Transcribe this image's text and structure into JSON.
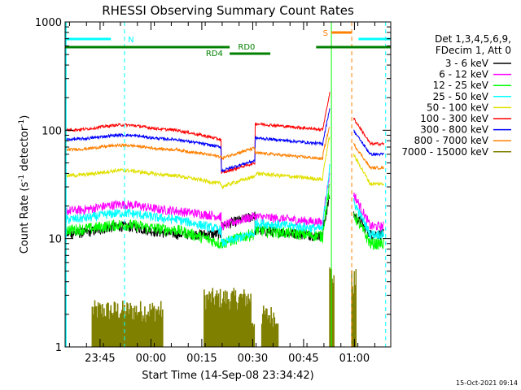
{
  "chart_data": {
    "type": "line",
    "title": "RHESSI Observing Summary Count Rates",
    "xlabel": "Start Time (14-Sep-08 23:34:42)",
    "ylabel_main": "Count Rate (s",
    "ylabel_sup1": "-1",
    "ylabel_mid": " detector",
    "ylabel_sup2": "-1",
    "ylabel_end": ")",
    "yscale": "log",
    "ylim": [
      1,
      1000
    ],
    "xlim_minutes": [
      0,
      96
    ],
    "y_ticks": [
      {
        "value": 1000,
        "label": "1000"
      },
      {
        "value": 100,
        "label": "100"
      },
      {
        "value": 10,
        "label": "10"
      },
      {
        "value": 1,
        "label": "1"
      }
    ],
    "x_ticks": [
      {
        "t": 10.3,
        "label": "23:45"
      },
      {
        "t": 25.3,
        "label": "00:00"
      },
      {
        "t": 40.3,
        "label": "00:15"
      },
      {
        "t": 55.3,
        "label": "00:30"
      },
      {
        "t": 70.3,
        "label": "00:45"
      },
      {
        "t": 85.3,
        "label": "01:00"
      }
    ],
    "legend_header": [
      "Det 1,3,4,5,6,9,",
      "FDecim 1, Att 0"
    ],
    "series": [
      {
        "name": "3 - 6 keV",
        "color": "#000000",
        "base": 11,
        "bump": 0.18,
        "pre_gap": 11,
        "gap": 13,
        "post_gap": 12,
        "pre_flare": 12,
        "flare_peak": 25,
        "decay_start": 17,
        "decay_end": 11,
        "noise": 0.22
      },
      {
        "name": "6 - 12 keV",
        "color": "#ff00ff",
        "base": 18,
        "bump": 0.15,
        "pre_gap": 16,
        "gap": 13,
        "post_gap": 16,
        "pre_flare": 16,
        "flare_peak": 40,
        "decay_start": 26,
        "decay_end": 13,
        "noise": 0.2
      },
      {
        "name": "12 - 25 keV",
        "color": "#00ff00",
        "base": 12,
        "bump": 0.12,
        "pre_gap": 9,
        "gap": 9,
        "post_gap": 12,
        "pre_flare": 12,
        "flare_peak": 30,
        "decay_start": 17,
        "decay_end": 9,
        "noise": 0.25
      },
      {
        "name": "25 - 50 keV",
        "color": "#00ffff",
        "base": 15,
        "bump": 0.15,
        "pre_gap": 12,
        "gap": 9,
        "post_gap": 14,
        "pre_flare": 14,
        "flare_peak": 45,
        "decay_start": 22,
        "decay_end": 11,
        "noise": 0.2
      },
      {
        "name": "50 - 100 keV",
        "color": "#e0e000",
        "base": 38,
        "bump": 0.12,
        "pre_gap": 32,
        "gap": 30,
        "post_gap": 40,
        "pre_flare": 40,
        "flare_peak": 90,
        "decay_start": 60,
        "decay_end": 32,
        "noise": 0.08
      },
      {
        "name": "100 - 300 keV",
        "color": "#ff0000",
        "base": 100,
        "bump": 0.12,
        "pre_gap": 82,
        "gap": 40,
        "post_gap": 115,
        "pre_flare": 105,
        "flare_peak": 220,
        "decay_start": 130,
        "decay_end": 75,
        "noise": 0.06
      },
      {
        "name": "300 - 800 keV",
        "color": "#0000ff",
        "base": 82,
        "bump": 0.1,
        "pre_gap": 70,
        "gap": 42,
        "post_gap": 85,
        "pre_flare": 78,
        "flare_peak": 160,
        "decay_start": 100,
        "decay_end": 60,
        "noise": 0.06
      },
      {
        "name": "800 - 7000 keV",
        "color": "#ff8000",
        "base": 66,
        "bump": 0.1,
        "pre_gap": 57,
        "gap": 55,
        "post_gap": 62,
        "pre_flare": 60,
        "flare_peak": 110,
        "decay_start": 75,
        "decay_end": 45,
        "noise": 0.06
      },
      {
        "name": "7000 - 15000 keV",
        "color": "#808000",
        "base": 1,
        "bump": 0,
        "pre_gap": 1,
        "gap": 1,
        "post_gap": 1,
        "pre_flare": 1,
        "flare_peak": 1,
        "decay_start": 1,
        "decay_end": 1,
        "noise": 0
      }
    ],
    "annotations": {
      "n_label": "N",
      "s_label": "S",
      "rd0_label": "RD0",
      "rd4_label": "RD4"
    },
    "vertical_lines": [
      {
        "t": 17.5,
        "color": "#00ffff",
        "style": "dashed"
      },
      {
        "t": 94.5,
        "color": "#00ffff",
        "style": "dashed"
      },
      {
        "t": 78.5,
        "color": "#00ff00",
        "style": "solid"
      },
      {
        "t": 84.5,
        "color": "#ff8000",
        "style": "dashed"
      }
    ],
    "timestamp": "15-Oct-2021 09:14"
  }
}
